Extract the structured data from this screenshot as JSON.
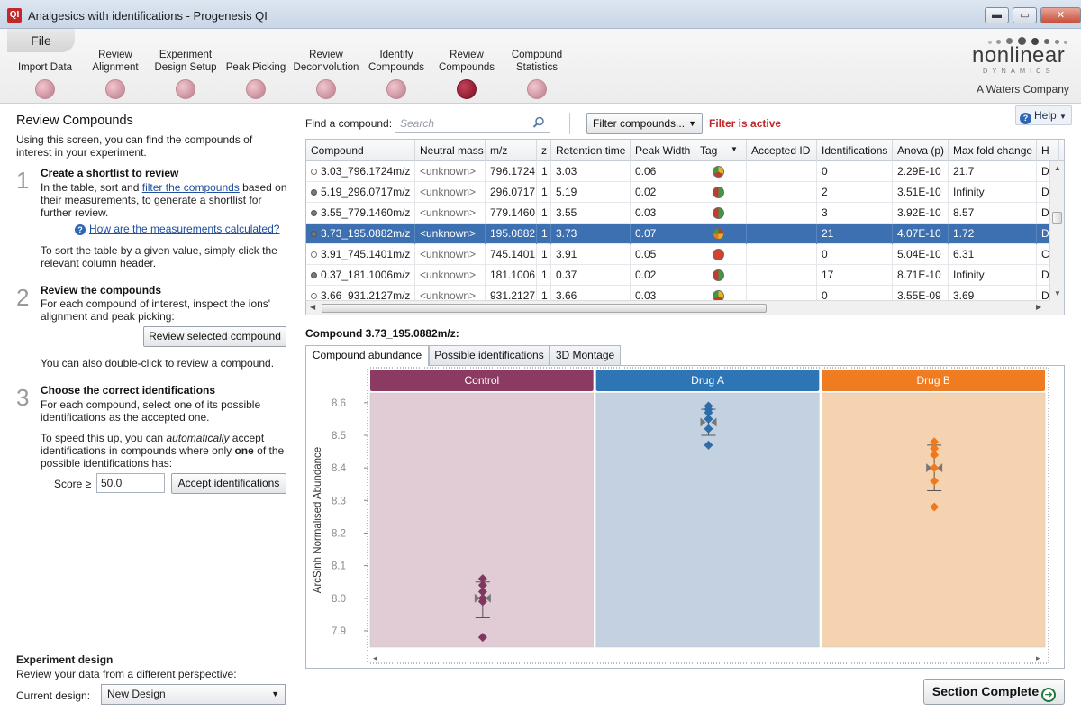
{
  "window": {
    "icon_text": "QI",
    "title": "Analgesics with identifications - Progenesis QI",
    "minimize": "▬",
    "maximize": "▭",
    "close": "✕"
  },
  "workflow": {
    "file_tab": "File",
    "steps": [
      {
        "label": "Import Data"
      },
      {
        "label": "Review Alignment"
      },
      {
        "label": "Experiment Design Setup"
      },
      {
        "label": "Peak Picking"
      },
      {
        "label": "Review Deconvolution"
      },
      {
        "label": "Identify Compounds"
      },
      {
        "label": "Review Compounds",
        "active": true
      },
      {
        "label": "Compound Statistics"
      }
    ],
    "logo": {
      "word": "nonlinear",
      "sub": "DYNAMICS",
      "company": "A Waters Company"
    },
    "help": "Help",
    "help_icon": "?"
  },
  "left": {
    "title": "Review Compounds",
    "intro": "Using this screen, you can find the compounds of interest in your experiment.",
    "step1": {
      "num": "1",
      "title": "Create a shortlist to review",
      "text_a": "In the table, sort and ",
      "link": "filter the compounds",
      "text_b": " based on their measurements, to generate a shortlist for further review.",
      "help_link": "How are the measurements calculated?",
      "help_icon": "?",
      "sort_text": "To sort the table by a given value, simply click the relevant column header."
    },
    "step2": {
      "num": "2",
      "title": "Review the compounds",
      "text": "For each compound of interest, inspect the ions' alignment and peak picking:",
      "button": "Review selected compound",
      "after": "You can also double-click to review a compound."
    },
    "step3": {
      "num": "3",
      "title": "Choose the correct identifications",
      "text": "For each compound, select one of its possible identifications as the accepted one.",
      "speed_a": "To speed this up, you can ",
      "speed_em": "automatically",
      "speed_b": " accept identifications in compounds where only ",
      "speed_strong": "one",
      "speed_c": " of the possible identifications has:",
      "score_label": "Score ≥",
      "score_value": "50.0",
      "accept_button": "Accept identifications"
    },
    "experiment": {
      "title": "Experiment design",
      "desc": "Review your data from a different perspective:",
      "label": "Current design:",
      "value": "New Design"
    }
  },
  "search": {
    "label": "Find a compound:",
    "placeholder": "Search",
    "filter_button": "Filter compounds...",
    "filter_status": "Filter is active"
  },
  "table": {
    "columns": [
      "Compound",
      "Neutral mass",
      "m/z",
      "z",
      "Retention time",
      "Peak Width",
      "Tag",
      "Accepted ID",
      "Identifications",
      "Anova (p)",
      "Max fold change",
      "H"
    ],
    "rows": [
      {
        "dot": "open",
        "compound": "3.03_796.1724m/z",
        "mass": "<unknown>",
        "mz": "796.1724",
        "z": "1",
        "rt": "3.03",
        "pw": "0.06",
        "tag": "tri",
        "acc": "",
        "ids": "0",
        "anova": "2.29E-10",
        "fold": "21.7",
        "h": "D"
      },
      {
        "dot": "fill",
        "compound": "5.19_296.0717m/z",
        "mass": "<unknown>",
        "mz": "296.0717",
        "z": "1",
        "rt": "5.19",
        "pw": "0.02",
        "tag": "gr",
        "acc": "",
        "ids": "2",
        "anova": "3.51E-10",
        "fold": "Infinity",
        "h": "D"
      },
      {
        "dot": "fill",
        "compound": "3.55_779.1460m/z",
        "mass": "<unknown>",
        "mz": "779.1460",
        "z": "1",
        "rt": "3.55",
        "pw": "0.03",
        "tag": "gr",
        "acc": "",
        "ids": "3",
        "anova": "3.92E-10",
        "fold": "8.57",
        "h": "D"
      },
      {
        "dot": "fill",
        "compound": "3.73_195.0882m/z",
        "mass": "<unknown>",
        "mz": "195.0882",
        "z": "1",
        "rt": "3.73",
        "pw": "0.07",
        "tag": "quad",
        "acc": "",
        "ids": "21",
        "anova": "4.07E-10",
        "fold": "1.72",
        "h": "D",
        "selected": true
      },
      {
        "dot": "open",
        "compound": "3.91_745.1401m/z",
        "mass": "<unknown>",
        "mz": "745.1401",
        "z": "1",
        "rt": "3.91",
        "pw": "0.05",
        "tag": "red",
        "acc": "",
        "ids": "0",
        "anova": "5.04E-10",
        "fold": "6.31",
        "h": "C"
      },
      {
        "dot": "fill",
        "compound": "0.37_181.1006m/z",
        "mass": "<unknown>",
        "mz": "181.1006",
        "z": "1",
        "rt": "0.37",
        "pw": "0.02",
        "tag": "gr",
        "acc": "",
        "ids": "17",
        "anova": "8.71E-10",
        "fold": "Infinity",
        "h": "D"
      },
      {
        "dot": "open",
        "compound": "3.66_931.2127m/z",
        "mass": "<unknown>",
        "mz": "931.2127",
        "z": "1",
        "rt": "3.66",
        "pw": "0.03",
        "tag": "tri",
        "acc": "",
        "ids": "0",
        "anova": "3.55E-09",
        "fold": "3.69",
        "h": "D"
      }
    ]
  },
  "compound_heading": "Compound 3.73_195.0882m/z:",
  "tabs": [
    "Compound abundance",
    "Possible identifications",
    "3D Montage"
  ],
  "chart_data": {
    "type": "scatter",
    "ylabel": "ArcSinh Normalised Abundance",
    "ylim": [
      7.85,
      8.63
    ],
    "yticks": [
      "8.6",
      "8.5",
      "8.4",
      "8.3",
      "8.2",
      "8.1",
      "8.0",
      "7.9"
    ],
    "groups": [
      {
        "name": "Control",
        "header_color": "#8b3a62",
        "bg_color": "#e1cbd4",
        "marker_color": "#7f3760",
        "values": [
          8.06,
          8.04,
          8.02,
          8.0,
          7.99,
          7.88
        ],
        "mean": 8.0,
        "err_low": 7.94,
        "err_high": 8.05
      },
      {
        "name": "Drug A",
        "header_color": "#2e75b6",
        "bg_color": "#c4d1e1",
        "marker_color": "#2e6da8",
        "values": [
          8.59,
          8.58,
          8.57,
          8.55,
          8.52,
          8.47
        ],
        "mean": 8.54,
        "err_low": 8.5,
        "err_high": 8.58
      },
      {
        "name": "Drug B",
        "header_color": "#f07c22",
        "bg_color": "#f6d3b0",
        "marker_color": "#ee7a1f",
        "values": [
          8.48,
          8.46,
          8.44,
          8.4,
          8.36,
          8.28
        ],
        "mean": 8.4,
        "err_low": 8.33,
        "err_high": 8.47
      }
    ]
  },
  "footer": {
    "section_complete": "Section Complete",
    "next_icon": "➔"
  },
  "colors": {
    "accent": "#3d70b0",
    "filter_active": "#c0282b",
    "active_step": "#8a1b30"
  }
}
